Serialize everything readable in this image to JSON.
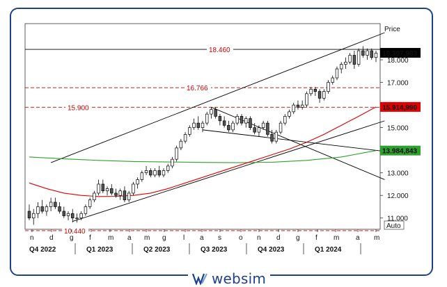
{
  "chart_data": {
    "type": "candlestick",
    "price_label": "Price",
    "auto_label": "Auto",
    "ylim": [
      10.5,
      19.6
    ],
    "y_ticks": [
      11.0,
      12.0,
      13.0,
      14.0,
      15.0,
      16.0,
      17.0,
      18.0
    ],
    "y_tick_labels": [
      "11.000",
      "12.000",
      "13.000",
      "14.000",
      "15.000",
      "16.000",
      "17.000",
      "18.000"
    ],
    "x_month_labels": [
      "n",
      "d",
      "g",
      "f",
      "m",
      "a",
      "m",
      "g",
      "l",
      "a",
      "s",
      "o",
      "n",
      "d",
      "g",
      "f",
      "m",
      "a",
      "m"
    ],
    "x_quarter_labels": [
      "Q4 2022",
      "Q1 2023",
      "Q2 2023",
      "Q3 2023",
      "Q4 2023",
      "Q1 2024"
    ],
    "levels": [
      {
        "value": 18.46,
        "label": "18.460",
        "color": "#000000",
        "style": "solid"
      },
      {
        "value": 16.766,
        "label": "16.766",
        "color": "#d00000",
        "style": "dashed"
      },
      {
        "value": 15.9,
        "label": "15.900",
        "color": "#d00000",
        "style": "dashed"
      },
      {
        "value": 10.44,
        "label": "10.440",
        "color": "#d00000",
        "style": "dashed"
      }
    ],
    "price_tags": [
      {
        "value": 18.307983,
        "label": "18.307,983",
        "bg": "#000000",
        "fg": "#ffffff"
      },
      {
        "value": 15.91499,
        "label": "15.914,990",
        "bg": "#e00000",
        "fg": "#ffffff"
      },
      {
        "value": 13.984843,
        "label": "13.984,843",
        "bg": "#2fa12f",
        "fg": "#ffffff"
      }
    ],
    "candles": [
      [
        11.3,
        11.6,
        10.9,
        11.0
      ],
      [
        11.0,
        11.4,
        10.7,
        11.2
      ],
      [
        11.2,
        11.7,
        11.0,
        11.5
      ],
      [
        11.5,
        11.8,
        11.2,
        11.3
      ],
      [
        11.3,
        11.6,
        11.1,
        11.5
      ],
      [
        11.5,
        11.9,
        11.3,
        11.7
      ],
      [
        11.7,
        11.9,
        11.4,
        11.5
      ],
      [
        11.5,
        11.7,
        11.2,
        11.3
      ],
      [
        11.3,
        11.5,
        11.0,
        11.1
      ],
      [
        11.1,
        11.3,
        10.9,
        11.2
      ],
      [
        11.2,
        11.4,
        10.8,
        11.0
      ],
      [
        11.0,
        11.2,
        10.8,
        11.0
      ],
      [
        11.0,
        11.3,
        10.9,
        11.2
      ],
      [
        11.2,
        11.6,
        11.1,
        11.5
      ],
      [
        11.5,
        11.9,
        11.4,
        11.8
      ],
      [
        11.8,
        12.2,
        11.7,
        12.1
      ],
      [
        12.1,
        12.7,
        12.0,
        12.5
      ],
      [
        12.5,
        12.7,
        12.1,
        12.2
      ],
      [
        12.2,
        12.4,
        12.0,
        12.3
      ],
      [
        12.3,
        12.5,
        12.0,
        12.1
      ],
      [
        12.1,
        12.3,
        11.9,
        12.0
      ],
      [
        12.0,
        12.3,
        11.8,
        12.2
      ],
      [
        12.2,
        12.4,
        11.7,
        11.8
      ],
      [
        11.8,
        12.2,
        11.7,
        12.1
      ],
      [
        12.1,
        12.6,
        12.0,
        12.5
      ],
      [
        12.5,
        12.8,
        12.3,
        12.7
      ],
      [
        12.7,
        13.1,
        12.6,
        13.0
      ],
      [
        13.0,
        13.3,
        12.9,
        13.1
      ],
      [
        13.1,
        13.2,
        12.8,
        12.9
      ],
      [
        12.9,
        13.2,
        12.8,
        13.1
      ],
      [
        13.1,
        13.3,
        12.8,
        12.9
      ],
      [
        12.9,
        13.2,
        12.8,
        13.1
      ],
      [
        13.1,
        13.4,
        13.0,
        13.3
      ],
      [
        13.3,
        13.7,
        13.2,
        13.6
      ],
      [
        13.6,
        14.2,
        13.5,
        14.1
      ],
      [
        14.1,
        14.5,
        14.0,
        14.4
      ],
      [
        14.4,
        14.8,
        14.3,
        14.7
      ],
      [
        14.7,
        15.1,
        14.6,
        15.0
      ],
      [
        15.0,
        15.4,
        14.9,
        15.2
      ],
      [
        15.2,
        15.5,
        14.9,
        15.0
      ],
      [
        15.0,
        15.3,
        14.8,
        15.2
      ],
      [
        15.2,
        15.7,
        15.1,
        15.6
      ],
      [
        15.6,
        15.9,
        15.4,
        15.8
      ],
      [
        15.8,
        15.9,
        15.4,
        15.5
      ],
      [
        15.5,
        15.6,
        15.1,
        15.3
      ],
      [
        15.3,
        15.5,
        15.0,
        15.1
      ],
      [
        15.1,
        15.3,
        14.8,
        14.9
      ],
      [
        14.9,
        15.3,
        14.8,
        15.2
      ],
      [
        15.2,
        15.6,
        15.1,
        15.5
      ],
      [
        15.5,
        15.6,
        15.1,
        15.2
      ],
      [
        15.2,
        15.5,
        15.0,
        15.4
      ],
      [
        15.4,
        15.5,
        14.9,
        15.0
      ],
      [
        15.0,
        15.2,
        14.7,
        14.8
      ],
      [
        14.8,
        15.1,
        14.6,
        15.0
      ],
      [
        15.0,
        15.3,
        14.9,
        15.2
      ],
      [
        15.2,
        15.3,
        14.6,
        14.7
      ],
      [
        14.7,
        14.9,
        14.3,
        14.4
      ],
      [
        14.4,
        14.9,
        14.3,
        14.8
      ],
      [
        14.8,
        15.3,
        14.7,
        15.2
      ],
      [
        15.2,
        15.6,
        15.1,
        15.5
      ],
      [
        15.5,
        15.8,
        15.4,
        15.7
      ],
      [
        15.7,
        16.1,
        15.6,
        16.0
      ],
      [
        16.0,
        16.2,
        15.8,
        15.9
      ],
      [
        15.9,
        16.2,
        15.8,
        16.0
      ],
      [
        16.0,
        16.6,
        15.9,
        16.5
      ],
      [
        16.5,
        16.8,
        16.4,
        16.7
      ],
      [
        16.7,
        16.8,
        16.4,
        16.6
      ],
      [
        16.6,
        16.7,
        16.1,
        16.3
      ],
      [
        16.3,
        16.7,
        16.2,
        16.6
      ],
      [
        16.6,
        17.1,
        16.5,
        17.0
      ],
      [
        17.0,
        17.3,
        16.9,
        17.2
      ],
      [
        17.2,
        17.7,
        17.1,
        17.6
      ],
      [
        17.6,
        17.9,
        17.4,
        17.8
      ],
      [
        17.8,
        18.1,
        17.6,
        17.9
      ],
      [
        17.9,
        18.3,
        17.8,
        18.2
      ],
      [
        18.2,
        18.4,
        17.6,
        17.8
      ],
      [
        17.8,
        18.5,
        17.7,
        18.4
      ],
      [
        18.4,
        18.6,
        18.1,
        18.2
      ],
      [
        18.2,
        18.5,
        18.0,
        18.4
      ],
      [
        18.4,
        18.5,
        18.0,
        18.1
      ],
      [
        18.1,
        18.4,
        17.9,
        18.3
      ]
    ],
    "sma_red": [
      [
        0,
        12.55
      ],
      [
        4,
        12.3
      ],
      [
        8,
        12.1
      ],
      [
        12,
        12.0
      ],
      [
        16,
        11.95
      ],
      [
        20,
        11.96
      ],
      [
        24,
        12.0
      ],
      [
        28,
        12.1
      ],
      [
        32,
        12.3
      ],
      [
        36,
        12.55
      ],
      [
        40,
        12.8
      ],
      [
        44,
        13.05
      ],
      [
        48,
        13.3
      ],
      [
        52,
        13.55
      ],
      [
        56,
        13.8
      ],
      [
        60,
        14.05
      ],
      [
        64,
        14.35
      ],
      [
        68,
        14.7
      ],
      [
        72,
        15.1
      ],
      [
        76,
        15.5
      ],
      [
        80,
        15.914
      ]
    ],
    "sma_green": [
      [
        0,
        13.7
      ],
      [
        8,
        13.62
      ],
      [
        16,
        13.55
      ],
      [
        24,
        13.5
      ],
      [
        32,
        13.48
      ],
      [
        40,
        13.46
      ],
      [
        48,
        13.45
      ],
      [
        56,
        13.47
      ],
      [
        64,
        13.55
      ],
      [
        72,
        13.7
      ],
      [
        80,
        13.984
      ]
    ],
    "trendlines": [
      {
        "from": [
          5,
          13.45
        ],
        "to": [
          82,
          19.2
        ]
      },
      {
        "from": [
          10,
          10.85
        ],
        "to": [
          82,
          15.3
        ]
      },
      {
        "from": [
          42,
          15.9
        ],
        "to": [
          82,
          12.7
        ]
      },
      {
        "from": [
          40,
          14.9
        ],
        "to": [
          82,
          13.95
        ]
      }
    ]
  }
}
